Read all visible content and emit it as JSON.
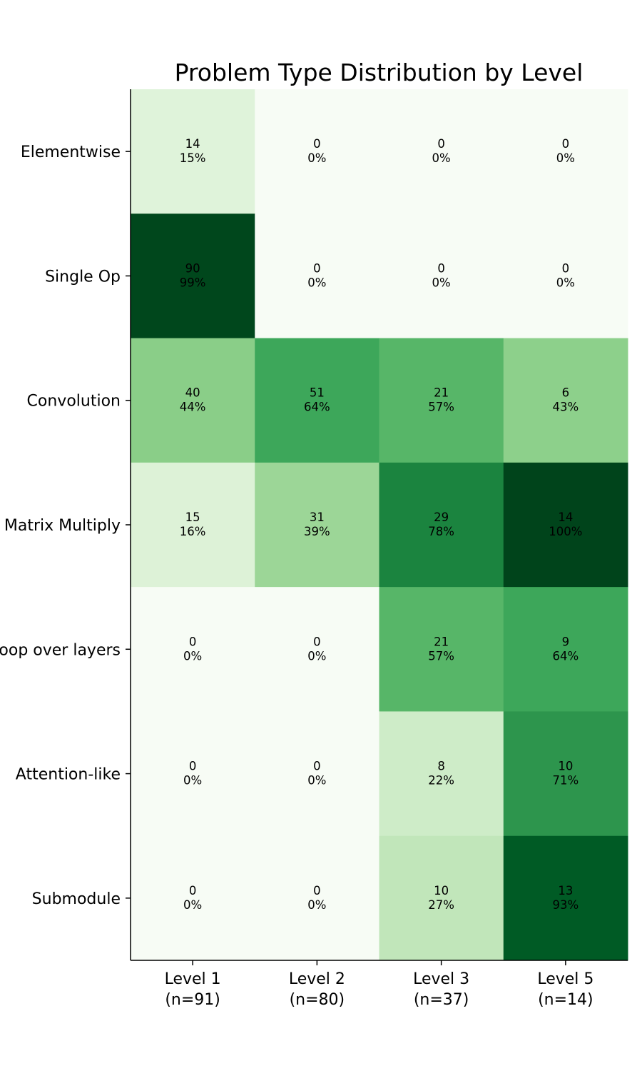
{
  "chart_data": {
    "type": "heatmap",
    "title": "Problem Type Distribution by Level",
    "x_labels": [
      [
        "Level 1",
        "(n=91)"
      ],
      [
        "Level 2",
        "(n=80)"
      ],
      [
        "Level 3",
        "(n=37)"
      ],
      [
        "Level 5",
        "(n=14)"
      ]
    ],
    "y_labels": [
      "Elementwise",
      "Single Op",
      "Convolution",
      "Matrix Multiply",
      "Loop over layers",
      "Attention-like",
      "Submodule"
    ],
    "counts": [
      [
        14,
        0,
        0,
        0
      ],
      [
        90,
        0,
        0,
        0
      ],
      [
        40,
        51,
        21,
        6
      ],
      [
        15,
        31,
        29,
        14
      ],
      [
        0,
        0,
        21,
        9
      ],
      [
        0,
        0,
        8,
        10
      ],
      [
        0,
        0,
        10,
        13
      ]
    ],
    "percents": [
      [
        "15%",
        "0%",
        "0%",
        "0%"
      ],
      [
        "99%",
        "0%",
        "0%",
        "0%"
      ],
      [
        "44%",
        "64%",
        "57%",
        "43%"
      ],
      [
        "16%",
        "39%",
        "78%",
        "100%"
      ],
      [
        "0%",
        "0%",
        "57%",
        "64%"
      ],
      [
        "0%",
        "0%",
        "22%",
        "71%"
      ],
      [
        "0%",
        "0%",
        "27%",
        "93%"
      ]
    ],
    "percent_values": [
      [
        15,
        0,
        0,
        0
      ],
      [
        99,
        0,
        0,
        0
      ],
      [
        44,
        64,
        57,
        43
      ],
      [
        16,
        39,
        78,
        100
      ],
      [
        0,
        0,
        57,
        64
      ],
      [
        0,
        0,
        22,
        71
      ],
      [
        0,
        0,
        27,
        93
      ]
    ],
    "color_range": [
      0,
      100
    ],
    "colormap": "Greens",
    "colormap_stops": [
      "#f7fcf5",
      "#e5f5e0",
      "#c7e9c0",
      "#a1d99b",
      "#74c476",
      "#41ab5d",
      "#238b45",
      "#006d2c",
      "#00441b"
    ],
    "grid": false,
    "legend": "none"
  }
}
